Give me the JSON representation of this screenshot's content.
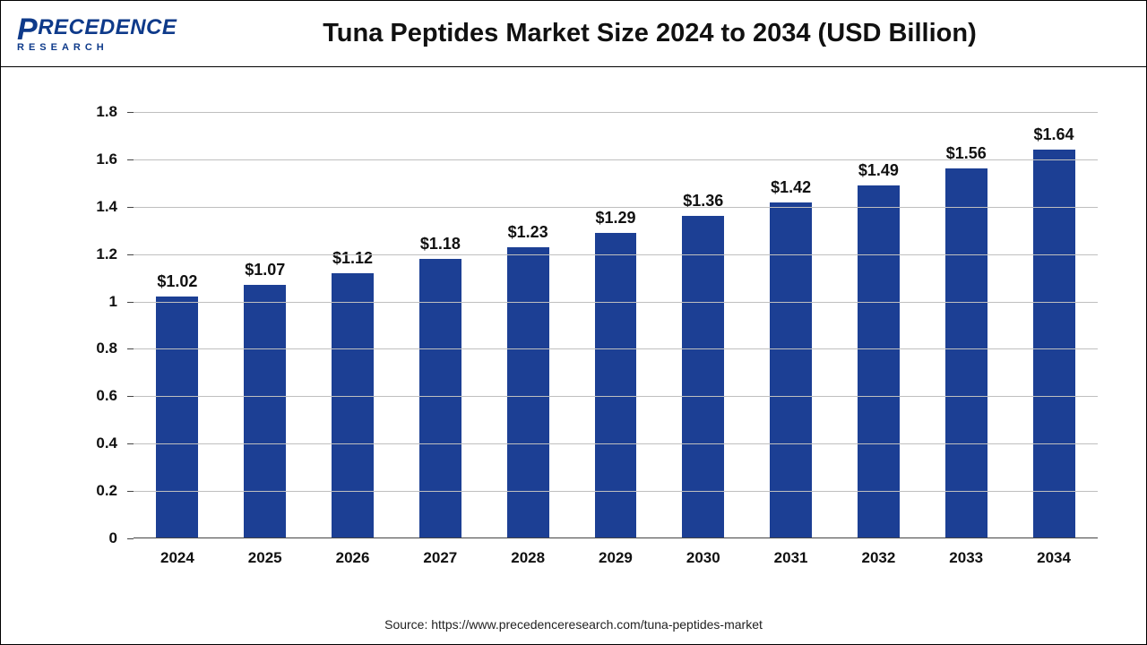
{
  "logo": {
    "brand": "RECEDENCE",
    "big_letter": "P",
    "sub": "RESEARCH"
  },
  "title": "Tuna Peptides Market Size 2024 to 2034 (USD Billion)",
  "chart": {
    "type": "bar",
    "categories": [
      "2024",
      "2025",
      "2026",
      "2027",
      "2028",
      "2029",
      "2030",
      "2031",
      "2032",
      "2033",
      "2034"
    ],
    "values": [
      1.02,
      1.07,
      1.12,
      1.18,
      1.23,
      1.29,
      1.36,
      1.42,
      1.49,
      1.56,
      1.64
    ],
    "value_labels": [
      "$1.02",
      "$1.07",
      "$1.12",
      "$1.18",
      "$1.23",
      "$1.29",
      "$1.36",
      "$1.42",
      "$1.49",
      "$1.56",
      "$1.64"
    ],
    "bar_color": "#1c3f94",
    "ylim": [
      0,
      1.8
    ],
    "yticks": [
      0,
      0.2,
      0.4,
      0.6,
      0.8,
      1,
      1.2,
      1.4,
      1.6,
      1.8
    ],
    "ytick_labels": [
      "0",
      "0.2",
      "0.4",
      "0.6",
      "0.8",
      "1",
      "1.2",
      "1.4",
      "1.6",
      "1.8"
    ],
    "grid_color": "#bfbfbf",
    "axis_color": "#444444",
    "background_color": "#ffffff",
    "bar_width_ratio": 0.48,
    "label_fontsize": 18,
    "tick_fontsize": 17,
    "title_fontsize": 29
  },
  "source": "Source: https://www.precedenceresearch.com/tuna-peptides-market"
}
